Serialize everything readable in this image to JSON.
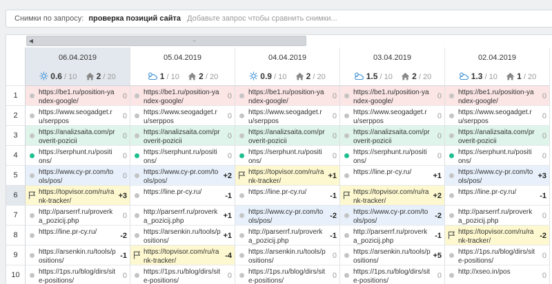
{
  "query_bar": {
    "label": "Снимки по запросу:",
    "query": "проверка позиций сайта",
    "add_placeholder": "Добавьте запрос чтобы сравнить снимки..."
  },
  "scrollbar": {
    "grip": "..."
  },
  "snapshots": [
    {
      "date": "06.04.2019",
      "weather": "sun",
      "score": "0.6",
      "score_max": "/ 10",
      "home": "2",
      "home_max": "/ 20",
      "active": true
    },
    {
      "date": "05.04.2019",
      "weather": "cloud",
      "score": "1",
      "score_max": "/ 10",
      "home": "2",
      "home_max": "/ 20",
      "active": false
    },
    {
      "date": "04.04.2019",
      "weather": "sun",
      "score": "0.9",
      "score_max": "/ 10",
      "home": "2",
      "home_max": "/ 20",
      "active": false
    },
    {
      "date": "03.04.2019",
      "weather": "cloud",
      "score": "1.5",
      "score_max": "/ 10",
      "home": "2",
      "home_max": "/ 20",
      "active": false
    },
    {
      "date": "02.04.2019",
      "weather": "cloud",
      "score": "1.3",
      "score_max": "/ 10",
      "home": "1",
      "home_max": "/ 20",
      "active": false
    }
  ],
  "row_numbers": [
    "1",
    "2",
    "3",
    "4",
    "5",
    "6",
    "7",
    "8",
    "9",
    "10"
  ],
  "highlighted_row": 5,
  "colors": {
    "red": "#fbe5e5",
    "green": "#dff4ea",
    "blue": "#e8f1fb",
    "yellow": "#fdf8cf",
    "white": "#ffffff",
    "dot_gray": "#c4c4c4",
    "dot_green": "#1fbf8f"
  },
  "rows": [
    [
      {
        "url": "https://be1.ru/position-yandex-google/",
        "delta": "0",
        "bg": "red",
        "marker": "gray"
      },
      {
        "url": "https://be1.ru/position-yandex-google/",
        "delta": "0",
        "bg": "red",
        "marker": "gray"
      },
      {
        "url": "https://be1.ru/position-yandex-google/",
        "delta": "0",
        "bg": "red",
        "marker": "gray"
      },
      {
        "url": "https://be1.ru/position-yandex-google/",
        "delta": "0",
        "bg": "red",
        "marker": "gray"
      },
      {
        "url": "https://be1.ru/position-yandex-google/",
        "delta": "0",
        "bg": "red",
        "marker": "gray"
      }
    ],
    [
      {
        "url": "https://www.seogadget.ru/serppos",
        "delta": "0",
        "bg": "white",
        "marker": "gray"
      },
      {
        "url": "https://www.seogadget.ru/serppos",
        "delta": "0",
        "bg": "white",
        "marker": "gray"
      },
      {
        "url": "https://www.seogadget.ru/serppos",
        "delta": "0",
        "bg": "white",
        "marker": "gray"
      },
      {
        "url": "https://www.seogadget.ru/serppos",
        "delta": "0",
        "bg": "white",
        "marker": "gray"
      },
      {
        "url": "https://www.seogadget.ru/serppos",
        "delta": "0",
        "bg": "white",
        "marker": "gray"
      }
    ],
    [
      {
        "url": "https://analizsaita.com/proverit-pozicii",
        "delta": "0",
        "bg": "green",
        "marker": "gray"
      },
      {
        "url": "https://analizsaita.com/proverit-pozicii",
        "delta": "0",
        "bg": "green",
        "marker": "gray"
      },
      {
        "url": "https://analizsaita.com/proverit-pozicii",
        "delta": "0",
        "bg": "green",
        "marker": "gray"
      },
      {
        "url": "https://analizsaita.com/proverit-pozicii",
        "delta": "0",
        "bg": "green",
        "marker": "gray"
      },
      {
        "url": "https://analizsaita.com/proverit-pozicii",
        "delta": "0",
        "bg": "green",
        "marker": "gray"
      }
    ],
    [
      {
        "url": "https://serphunt.ru/positions/",
        "delta": "0",
        "bg": "white",
        "marker": "green"
      },
      {
        "url": "https://serphunt.ru/positions/",
        "delta": "0",
        "bg": "white",
        "marker": "green"
      },
      {
        "url": "https://serphunt.ru/positions/",
        "delta": "0",
        "bg": "white",
        "marker": "green"
      },
      {
        "url": "https://serphunt.ru/positions/",
        "delta": "0",
        "bg": "white",
        "marker": "green"
      },
      {
        "url": "https://serphunt.ru/positions/",
        "delta": "0",
        "bg": "white",
        "marker": "green"
      }
    ],
    [
      {
        "url": "https://www.cy-pr.com/tools/pos/",
        "delta": "0",
        "bg": "blue",
        "marker": "gray"
      },
      {
        "url": "https://www.cy-pr.com/tools/pos/",
        "delta": "+2",
        "bg": "blue",
        "marker": "gray"
      },
      {
        "url": "https://topvisor.com/ru/rank-tracker/",
        "delta": "+1",
        "bg": "yellow",
        "marker": "flag"
      },
      {
        "url": "https://line.pr-cy.ru/",
        "delta": "+1",
        "bg": "white",
        "marker": "gray"
      },
      {
        "url": "https://www.cy-pr.com/tools/pos/",
        "delta": "+3",
        "bg": "blue",
        "marker": "gray"
      }
    ],
    [
      {
        "url": "https://topvisor.com/ru/rank-tracker/",
        "delta": "+3",
        "bg": "yellow",
        "marker": "flag"
      },
      {
        "url": "https://line.pr-cy.ru/",
        "delta": "-1",
        "bg": "white",
        "marker": "gray"
      },
      {
        "url": "https://line.pr-cy.ru/",
        "delta": "-1",
        "bg": "white",
        "marker": "gray"
      },
      {
        "url": "https://topvisor.com/ru/rank-tracker/",
        "delta": "+2",
        "bg": "yellow",
        "marker": "flag"
      },
      {
        "url": "https://line.pr-cy.ru/",
        "delta": "-1",
        "bg": "white",
        "marker": "gray"
      }
    ],
    [
      {
        "url": "http://parserrf.ru/proverka_pozicij.php",
        "delta": "0",
        "bg": "white",
        "marker": "gray"
      },
      {
        "url": "http://parserrf.ru/proverka_pozicij.php",
        "delta": "+1",
        "bg": "white",
        "marker": "gray"
      },
      {
        "url": "https://www.cy-pr.com/tools/pos/",
        "delta": "-2",
        "bg": "blue",
        "marker": "gray"
      },
      {
        "url": "https://www.cy-pr.com/tools/pos/",
        "delta": "-2",
        "bg": "blue",
        "marker": "gray"
      },
      {
        "url": "http://parserrf.ru/proverka_pozicij.php",
        "delta": "0",
        "bg": "white",
        "marker": "gray"
      }
    ],
    [
      {
        "url": "https://line.pr-cy.ru/",
        "delta": "-2",
        "bg": "white",
        "marker": "gray"
      },
      {
        "url": "https://arsenkin.ru/tools/positions/",
        "delta": "+1",
        "bg": "white",
        "marker": "gray"
      },
      {
        "url": "http://parserrf.ru/proverka_pozicij.php",
        "delta": "-1",
        "bg": "white",
        "marker": "gray"
      },
      {
        "url": "http://parserrf.ru/proverka_pozicij.php",
        "delta": "-1",
        "bg": "white",
        "marker": "gray"
      },
      {
        "url": "https://topvisor.com/ru/rank-tracker/",
        "delta": "-2",
        "bg": "yellow",
        "marker": "flag"
      }
    ],
    [
      {
        "url": "https://arsenkin.ru/tools/positions/",
        "delta": "-1",
        "bg": "white",
        "marker": "gray"
      },
      {
        "url": "https://topvisor.com/ru/rank-tracker/",
        "delta": "-4",
        "bg": "yellow",
        "marker": "flag"
      },
      {
        "url": "https://arsenkin.ru/tools/positions/",
        "delta": "0",
        "bg": "white",
        "marker": "gray"
      },
      {
        "url": "https://arsenkin.ru/tools/positions/",
        "delta": "+5",
        "bg": "white",
        "marker": "gray"
      },
      {
        "url": "https://1ps.ru/blog/dirs/site-positions/",
        "delta": "0",
        "bg": "white",
        "marker": "gray"
      }
    ],
    [
      {
        "url": "https://1ps.ru/blog/dirs/site-positions/",
        "delta": "0",
        "bg": "white",
        "marker": "gray"
      },
      {
        "url": "https://1ps.ru/blog/dirs/site-positions/",
        "delta": "0",
        "bg": "white",
        "marker": "gray"
      },
      {
        "url": "https://1ps.ru/blog/dirs/site-positions/",
        "delta": "0",
        "bg": "white",
        "marker": "gray"
      },
      {
        "url": "https://1ps.ru/blog/dirs/site-positions/",
        "delta": "0",
        "bg": "white",
        "marker": "gray"
      },
      {
        "url": "http://xseo.in/pos",
        "delta": "0",
        "bg": "white",
        "marker": "gray"
      }
    ]
  ]
}
